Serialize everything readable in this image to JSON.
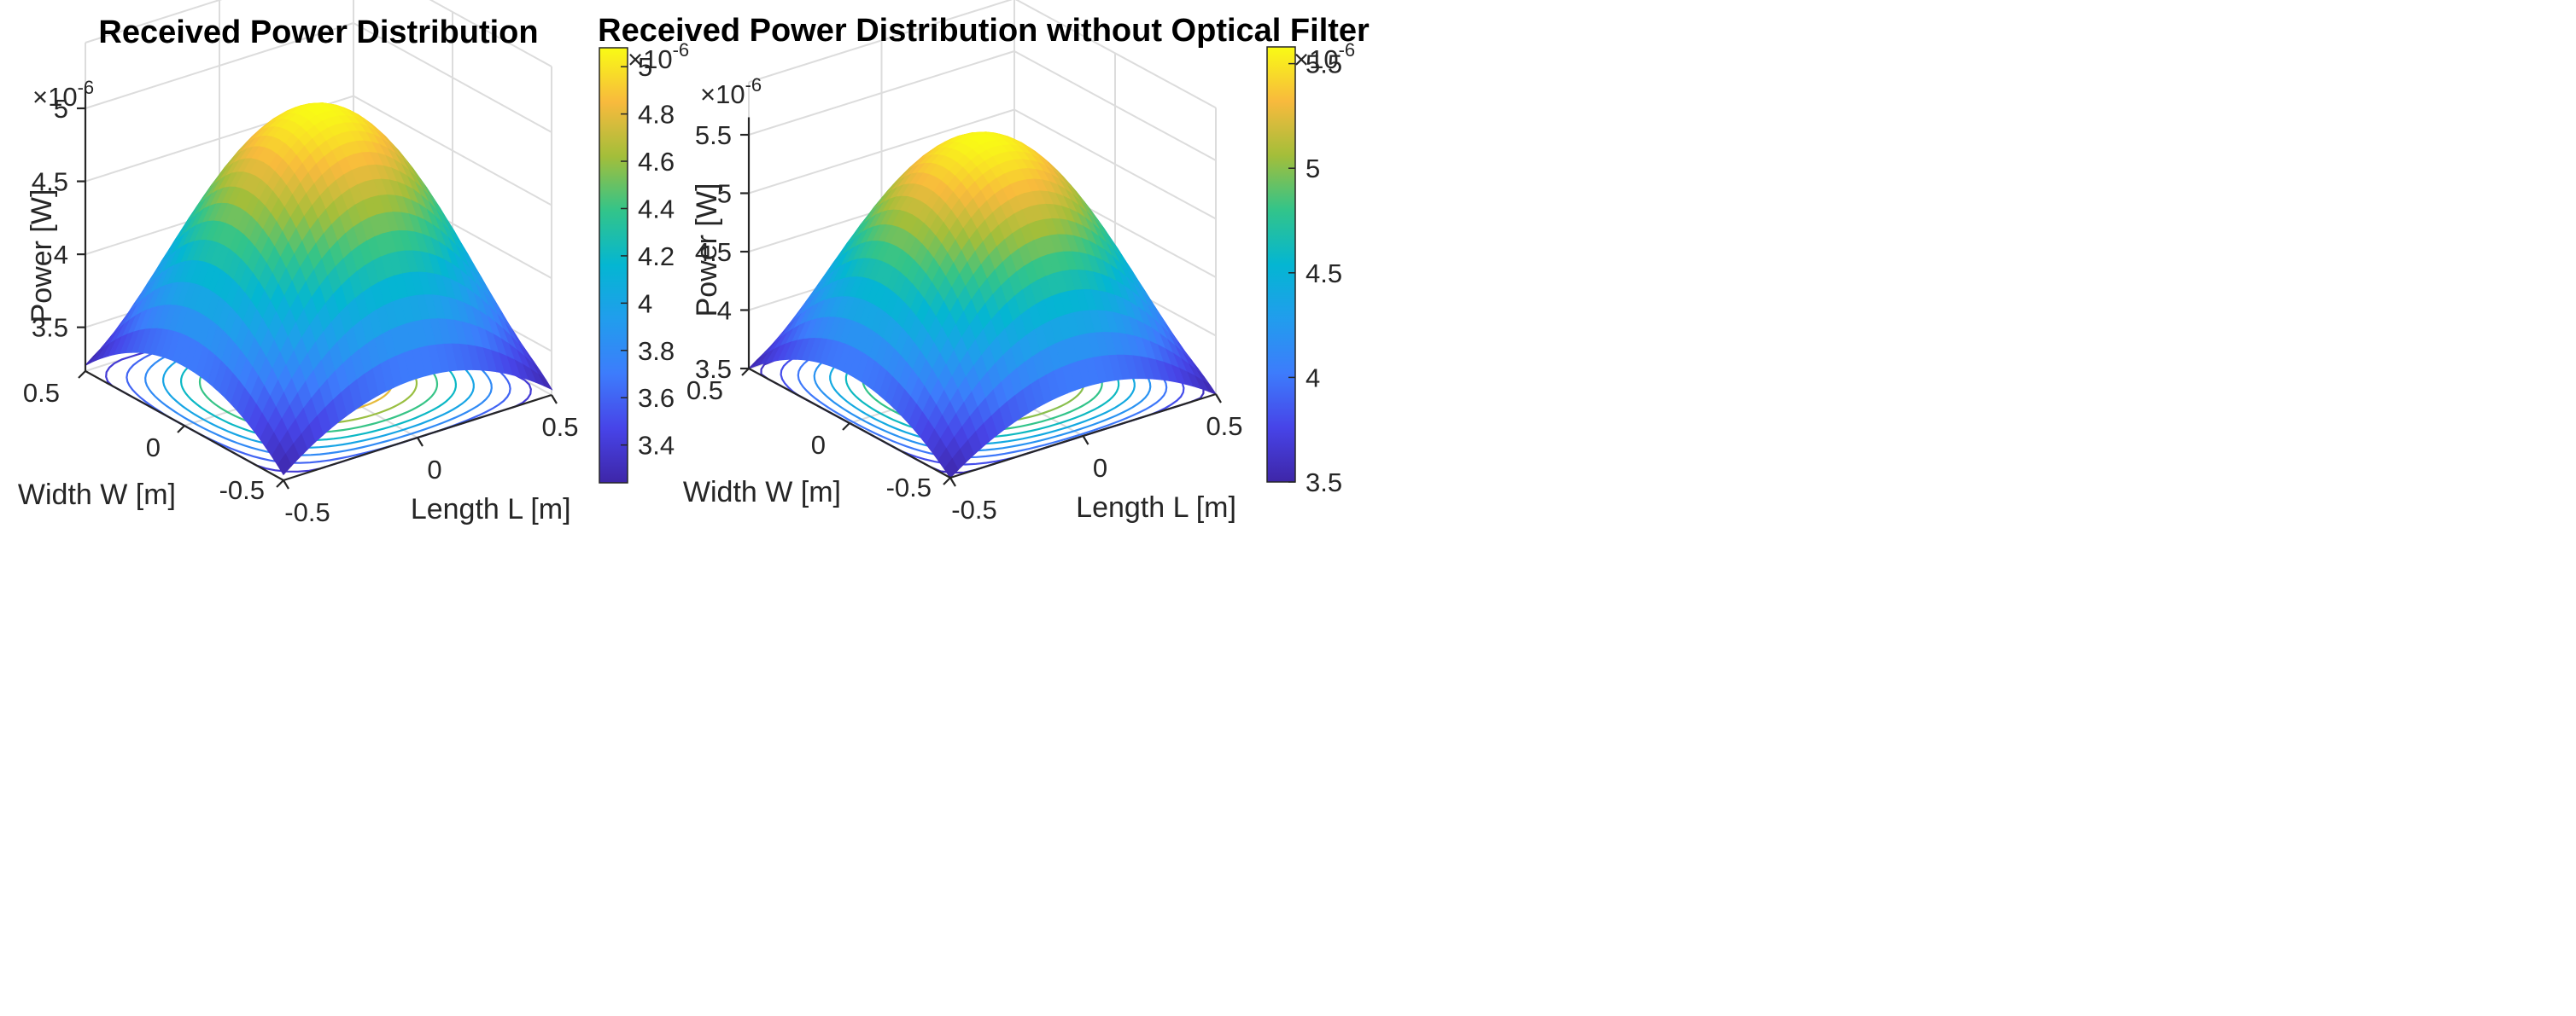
{
  "chart_data": [
    {
      "type": "surface3d",
      "title": "Received Power Distribution",
      "xlabel": "Length L [m]",
      "ylabel": "Width W [m]",
      "zlabel": "Power [W]",
      "z_exponent_label": "×10",
      "z_exponent": "-6",
      "x_ticks": [
        "-0.5",
        "0",
        "0.5"
      ],
      "y_ticks": [
        "-0.5",
        "0",
        "0.5"
      ],
      "z_ticks": [
        "3.5",
        "4",
        "4.5",
        "5"
      ],
      "z_tick_values": [
        3.5,
        4.0,
        4.5,
        5.0
      ],
      "zlim": [
        3.2,
        5.1
      ],
      "surface": {
        "peak": 5.08,
        "corner": 3.24,
        "x_range": [
          -0.5,
          0.5
        ],
        "y_range": [
          -0.5,
          0.5
        ]
      },
      "contour_levels": [
        3.4,
        3.6,
        3.8,
        4.0,
        4.2,
        4.4,
        4.6,
        4.8,
        5.0
      ],
      "colorbar": {
        "min": 3.24,
        "max": 5.08,
        "exponent_label": "×10",
        "exponent": "-6",
        "ticks": [
          "3.4",
          "3.6",
          "3.8",
          "4",
          "4.2",
          "4.4",
          "4.6",
          "4.8",
          "5"
        ],
        "tick_values": [
          3.4,
          3.6,
          3.8,
          4.0,
          4.2,
          4.4,
          4.6,
          4.8,
          5.0
        ]
      }
    },
    {
      "type": "surface3d",
      "title": "Received Power Distribution without Optical Filter",
      "xlabel": "Length L [m]",
      "ylabel": "Width W [m]",
      "zlabel": "Power [W]",
      "z_exponent_label": "×10",
      "z_exponent": "-6",
      "x_ticks": [
        "-0.5",
        "0",
        "0.5"
      ],
      "y_ticks": [
        "-0.5",
        "0",
        "0.5"
      ],
      "z_ticks": [
        "3.5",
        "4",
        "4.5",
        "5",
        "5.5"
      ],
      "z_tick_values": [
        3.5,
        4.0,
        4.5,
        5.0,
        5.5
      ],
      "zlim": [
        3.5,
        5.6
      ],
      "surface": {
        "peak": 5.58,
        "corner": 3.5,
        "x_range": [
          -0.5,
          0.5
        ],
        "y_range": [
          -0.5,
          0.5
        ]
      },
      "contour_levels": [
        3.6,
        3.8,
        4.0,
        4.2,
        4.4,
        4.6,
        4.8,
        5.0,
        5.2,
        5.4
      ],
      "colorbar": {
        "min": 3.5,
        "max": 5.58,
        "exponent_label": "×10",
        "exponent": "-6",
        "ticks": [
          "3.5",
          "4",
          "4.5",
          "5",
          "5.5"
        ],
        "tick_values": [
          3.5,
          4.0,
          4.5,
          5.0,
          5.5
        ]
      }
    }
  ]
}
